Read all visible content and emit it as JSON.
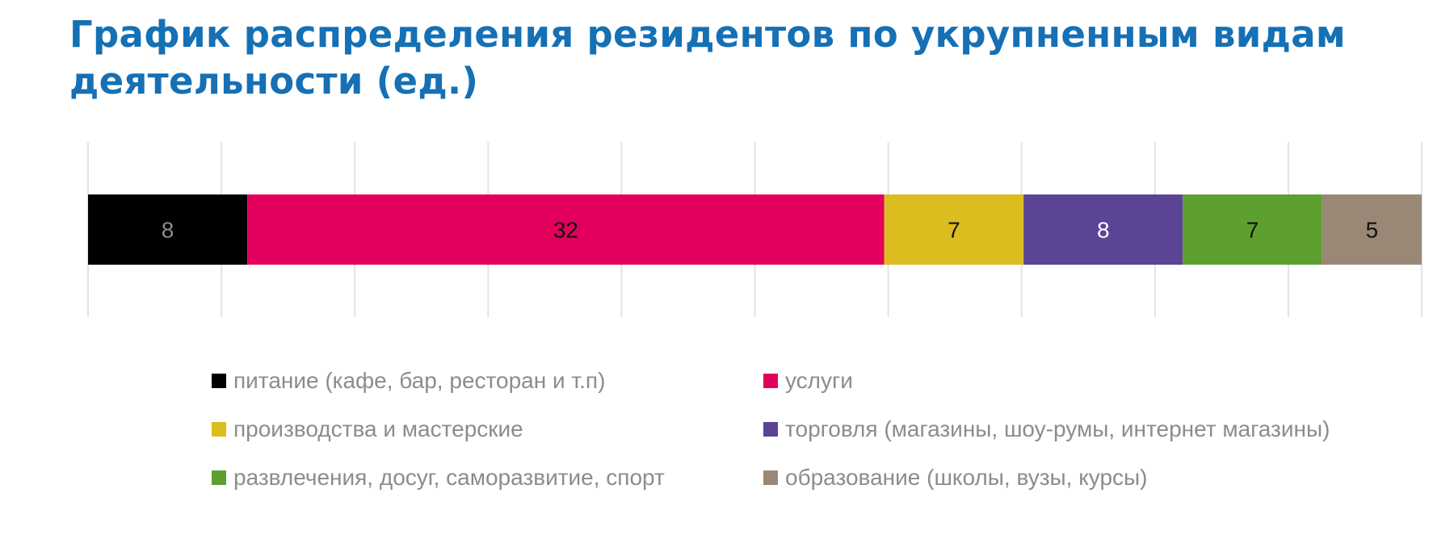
{
  "chart_data": {
    "type": "bar",
    "orientation": "horizontal",
    "stacked": true,
    "title": "График распределения резидентов по укрупненным видам деятельности (ед.)",
    "xlim": [
      0,
      67
    ],
    "grid": true,
    "legend_position": "bottom",
    "series": [
      {
        "name": "питание (кафе, бар, ресторан и т.п)",
        "values": [
          8
        ],
        "color": "#000000",
        "label_color": "#8c8c8c"
      },
      {
        "name": "услуги",
        "values": [
          32
        ],
        "color": "#e3005c",
        "label_color": "#111111"
      },
      {
        "name": "производства и мастерские",
        "values": [
          7
        ],
        "color": "#dbbd20",
        "label_color": "#111111"
      },
      {
        "name": "торговля (магазины, шоу-румы, интернет магазины)",
        "values": [
          8
        ],
        "color": "#5c4495",
        "label_color": "#ffffff"
      },
      {
        "name": "развлечения, досуг, саморазвитие, спорт",
        "values": [
          7
        ],
        "color": "#5ea02f",
        "label_color": "#111111"
      },
      {
        "name": "образование (школы, вузы, курсы)",
        "values": [
          5
        ],
        "color": "#9a8876",
        "label_color": "#111111"
      }
    ]
  }
}
